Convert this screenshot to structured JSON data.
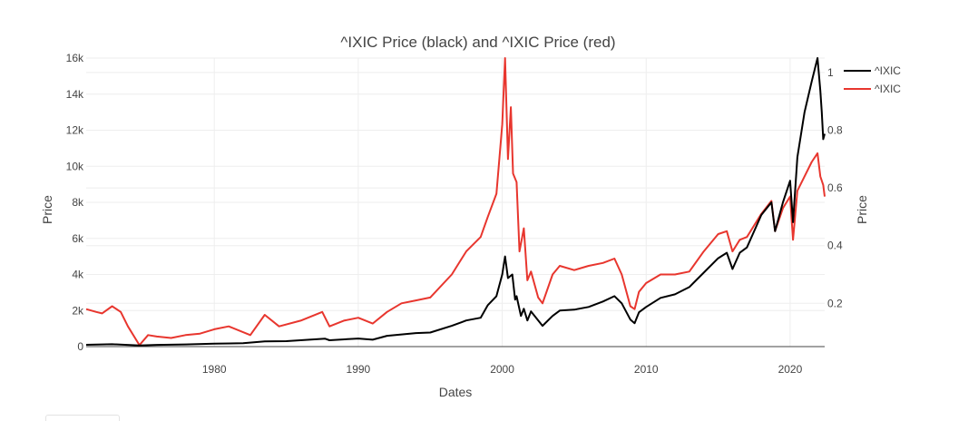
{
  "chart_data": {
    "type": "line",
    "title": "^IXIC Price (black) and ^IXIC Price (red)",
    "xlabel": "Dates",
    "ylabel_left": "Price",
    "ylabel_right": "Price",
    "x_ticks": [
      "1980",
      "1990",
      "2000",
      "2010",
      "2020"
    ],
    "y_left_ticks": [
      "0",
      "2k",
      "4k",
      "6k",
      "8k",
      "10k",
      "12k",
      "14k",
      "16k"
    ],
    "y_right_ticks": [
      "0.2",
      "0.4",
      "0.6",
      "0.8",
      "1"
    ],
    "x_range": [
      1971.1,
      2022.4
    ],
    "y_left_range": [
      0,
      16000
    ],
    "y_right_range": [
      0.05,
      1.05
    ],
    "grid": true,
    "legend_position": "top-right",
    "series": [
      {
        "name": "^IXIC",
        "color": "#000000",
        "axis": "left",
        "points": [
          [
            1971.1,
            100
          ],
          [
            1972.9,
            130
          ],
          [
            1974.8,
            60
          ],
          [
            1976.0,
            95
          ],
          [
            1978.0,
            120
          ],
          [
            1980.0,
            160
          ],
          [
            1982.0,
            190
          ],
          [
            1983.5,
            290
          ],
          [
            1985.0,
            300
          ],
          [
            1987.7,
            440
          ],
          [
            1988.0,
            350
          ],
          [
            1990.0,
            450
          ],
          [
            1991.0,
            380
          ],
          [
            1992.0,
            600
          ],
          [
            1994.0,
            750
          ],
          [
            1995.0,
            780
          ],
          [
            1996.5,
            1150
          ],
          [
            1997.5,
            1450
          ],
          [
            1998.5,
            1600
          ],
          [
            1999.0,
            2300
          ],
          [
            1999.6,
            2800
          ],
          [
            2000.0,
            4000
          ],
          [
            2000.2,
            5000
          ],
          [
            2000.4,
            3800
          ],
          [
            2000.7,
            4000
          ],
          [
            2000.9,
            2600
          ],
          [
            2001.0,
            2800
          ],
          [
            2001.3,
            1700
          ],
          [
            2001.5,
            2100
          ],
          [
            2001.75,
            1450
          ],
          [
            2002.0,
            1950
          ],
          [
            2002.8,
            1150
          ],
          [
            2003.5,
            1700
          ],
          [
            2004.0,
            2000
          ],
          [
            2005.0,
            2050
          ],
          [
            2006.0,
            2200
          ],
          [
            2007.0,
            2500
          ],
          [
            2007.8,
            2800
          ],
          [
            2008.3,
            2400
          ],
          [
            2008.9,
            1500
          ],
          [
            2009.2,
            1300
          ],
          [
            2009.5,
            1900
          ],
          [
            2010.0,
            2200
          ],
          [
            2011.0,
            2700
          ],
          [
            2012.0,
            2900
          ],
          [
            2013.0,
            3300
          ],
          [
            2014.0,
            4100
          ],
          [
            2015.0,
            4900
          ],
          [
            2015.6,
            5200
          ],
          [
            2016.0,
            4300
          ],
          [
            2016.5,
            5200
          ],
          [
            2017.0,
            5500
          ],
          [
            2018.0,
            7300
          ],
          [
            2018.7,
            8000
          ],
          [
            2018.95,
            6400
          ],
          [
            2019.5,
            8000
          ],
          [
            2020.0,
            9200
          ],
          [
            2020.2,
            6900
          ],
          [
            2020.5,
            10500
          ],
          [
            2021.0,
            13000
          ],
          [
            2021.5,
            14700
          ],
          [
            2021.9,
            16000
          ],
          [
            2022.1,
            14200
          ],
          [
            2022.2,
            13000
          ],
          [
            2022.3,
            11500
          ],
          [
            2022.4,
            11800
          ]
        ]
      },
      {
        "name": "^IXIC",
        "color": "#e8362e",
        "axis": "right",
        "points": [
          [
            1971.1,
            0.18
          ],
          [
            1971.8,
            0.17
          ],
          [
            1972.2,
            0.165
          ],
          [
            1972.9,
            0.19
          ],
          [
            1973.5,
            0.17
          ],
          [
            1974.0,
            0.12
          ],
          [
            1974.8,
            0.055
          ],
          [
            1975.4,
            0.09
          ],
          [
            1976.0,
            0.085
          ],
          [
            1977.0,
            0.08
          ],
          [
            1978.0,
            0.09
          ],
          [
            1979.0,
            0.095
          ],
          [
            1980.0,
            0.11
          ],
          [
            1981.0,
            0.12
          ],
          [
            1982.5,
            0.09
          ],
          [
            1983.5,
            0.16
          ],
          [
            1984.5,
            0.12
          ],
          [
            1986.0,
            0.14
          ],
          [
            1987.5,
            0.17
          ],
          [
            1988.0,
            0.12
          ],
          [
            1989.0,
            0.14
          ],
          [
            1990.0,
            0.15
          ],
          [
            1991.0,
            0.13
          ],
          [
            1992.0,
            0.17
          ],
          [
            1993.0,
            0.2
          ],
          [
            1994.0,
            0.21
          ],
          [
            1995.0,
            0.22
          ],
          [
            1996.5,
            0.3
          ],
          [
            1997.5,
            0.38
          ],
          [
            1998.5,
            0.43
          ],
          [
            1999.0,
            0.5
          ],
          [
            1999.6,
            0.58
          ],
          [
            2000.0,
            0.82
          ],
          [
            2000.2,
            1.05
          ],
          [
            2000.4,
            0.7
          ],
          [
            2000.6,
            0.88
          ],
          [
            2000.75,
            0.65
          ],
          [
            2001.0,
            0.62
          ],
          [
            2001.2,
            0.38
          ],
          [
            2001.5,
            0.46
          ],
          [
            2001.75,
            0.28
          ],
          [
            2002.0,
            0.31
          ],
          [
            2002.5,
            0.22
          ],
          [
            2002.8,
            0.2
          ],
          [
            2003.5,
            0.3
          ],
          [
            2004.0,
            0.33
          ],
          [
            2005.0,
            0.315
          ],
          [
            2006.0,
            0.33
          ],
          [
            2007.0,
            0.34
          ],
          [
            2007.8,
            0.355
          ],
          [
            2008.3,
            0.3
          ],
          [
            2008.9,
            0.19
          ],
          [
            2009.2,
            0.18
          ],
          [
            2009.5,
            0.24
          ],
          [
            2010.0,
            0.27
          ],
          [
            2011.0,
            0.3
          ],
          [
            2012.0,
            0.3
          ],
          [
            2013.0,
            0.31
          ],
          [
            2014.0,
            0.38
          ],
          [
            2015.0,
            0.44
          ],
          [
            2015.6,
            0.45
          ],
          [
            2016.0,
            0.38
          ],
          [
            2016.5,
            0.42
          ],
          [
            2017.0,
            0.43
          ],
          [
            2018.0,
            0.51
          ],
          [
            2018.7,
            0.555
          ],
          [
            2018.95,
            0.45
          ],
          [
            2019.5,
            0.53
          ],
          [
            2020.0,
            0.57
          ],
          [
            2020.2,
            0.42
          ],
          [
            2020.5,
            0.59
          ],
          [
            2021.0,
            0.64
          ],
          [
            2021.5,
            0.69
          ],
          [
            2021.9,
            0.72
          ],
          [
            2022.1,
            0.64
          ],
          [
            2022.3,
            0.61
          ],
          [
            2022.4,
            0.57
          ]
        ]
      }
    ]
  }
}
